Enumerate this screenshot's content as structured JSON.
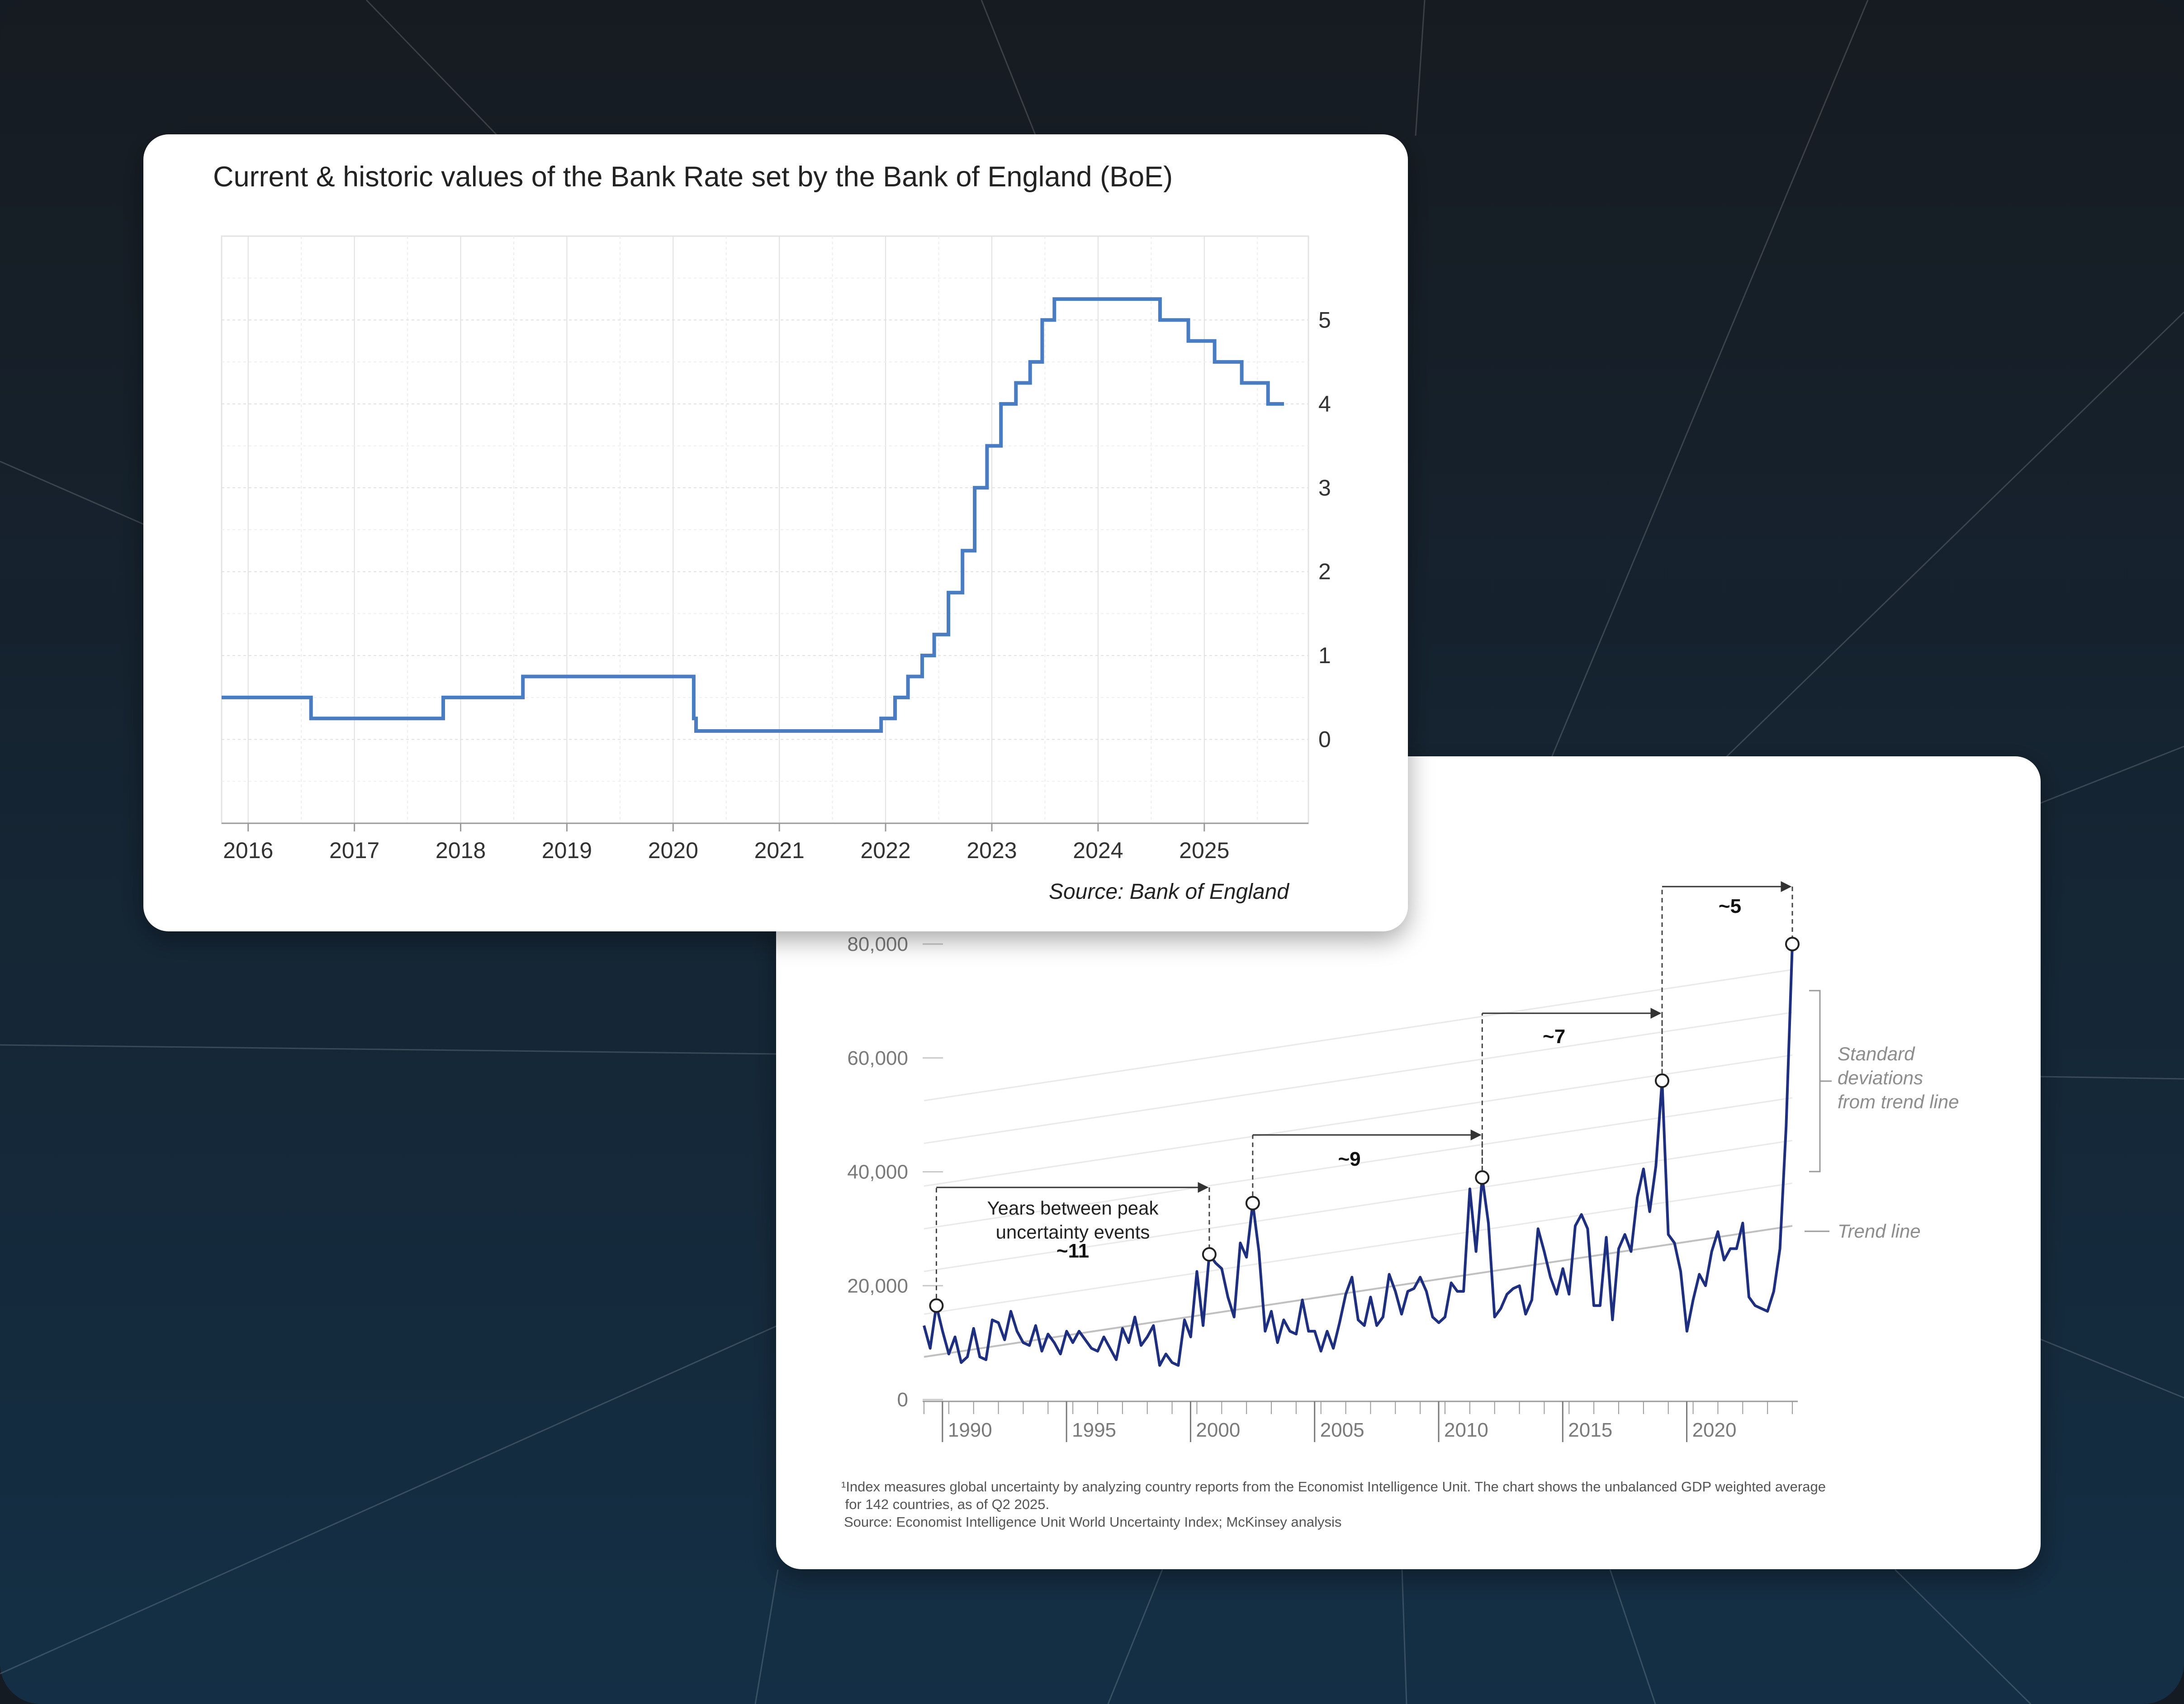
{
  "colors": {
    "background_top": "#161b21",
    "background_bottom": "#142f45",
    "card": "#ffffff",
    "boe_line": "#4a7cc2",
    "wui_line": "#1e2f80",
    "grid": "#e6e6e6",
    "muted_text": "#8d8d8d"
  },
  "boe_card": {
    "title": "Current & historic values of the Bank Rate set by the Bank of England (BoE)",
    "source": "Source: Bank of England"
  },
  "wui_card": {
    "annotations": {
      "years_between_peaks": [
        "Years between peak",
        "uncertainty events"
      ],
      "gap_11": "~11",
      "gap_9": "~9",
      "gap_7": "~7",
      "gap_5": "~5",
      "standard_deviations": [
        "Standard",
        "deviations",
        "from trend line"
      ],
      "trend_line": "Trend line"
    },
    "footnote": [
      "¹Index measures global uncertainty by analyzing country reports from the Economist Intelligence Unit. The chart shows the unbalanced GDP weighted average",
      " for 142 countries, as of Q2 2025.",
      "Source: Economist Intelligence Unit World Uncertainty Index; McKinsey analysis"
    ]
  },
  "chart_data": [
    {
      "type": "line",
      "title": "Current & historic values of the Bank Rate set by the Bank of England (BoE)",
      "xlabel": "",
      "ylabel": "",
      "interpolation": "step",
      "xlim": [
        2015.75,
        2025.98
      ],
      "ylim": [
        -1,
        6
      ],
      "x_ticks": [
        2016,
        2017,
        2018,
        2019,
        2020,
        2021,
        2022,
        2023,
        2024,
        2025
      ],
      "y_ticks": [
        0,
        1,
        2,
        3,
        4,
        5
      ],
      "y_axis_side": "right",
      "grid": true,
      "series": [
        {
          "points": [
            [
              "2015-10-01",
              0.5
            ],
            [
              "2016-08-04",
              0.25
            ],
            [
              "2017-11-02",
              0.5
            ],
            [
              "2018-08-02",
              0.75
            ],
            [
              "2020-03-11",
              0.25
            ],
            [
              "2020-03-19",
              0.1
            ],
            [
              "2021-12-16",
              0.25
            ],
            [
              "2022-02-03",
              0.5
            ],
            [
              "2022-03-17",
              0.75
            ],
            [
              "2022-05-05",
              1.0
            ],
            [
              "2022-06-16",
              1.25
            ],
            [
              "2022-08-04",
              1.75
            ],
            [
              "2022-09-22",
              2.25
            ],
            [
              "2022-11-03",
              3.0
            ],
            [
              "2022-12-15",
              3.5
            ],
            [
              "2023-02-02",
              4.0
            ],
            [
              "2023-03-23",
              4.25
            ],
            [
              "2023-05-11",
              4.5
            ],
            [
              "2023-06-22",
              5.0
            ],
            [
              "2023-08-03",
              5.25
            ],
            [
              "2024-08-01",
              5.0
            ],
            [
              "2024-11-07",
              4.75
            ],
            [
              "2025-02-06",
              4.5
            ],
            [
              "2025-05-08",
              4.25
            ],
            [
              "2025-08-07",
              4.0
            ],
            [
              "2025-10-01",
              4.0
            ]
          ]
        }
      ],
      "source": "Source: Bank of England"
    },
    {
      "type": "line",
      "title": "",
      "xlabel": "",
      "ylabel": "",
      "xlim": [
        1989,
        2025
      ],
      "ylim": [
        0,
        80000
      ],
      "x_ticks": [
        1990,
        1995,
        2000,
        2005,
        2010,
        2015,
        2020
      ],
      "y_ticks": [
        0,
        20000,
        40000,
        60000,
        80000
      ],
      "y_tick_labels": [
        "0",
        "20,000",
        "40,000",
        "60,000",
        "80,000"
      ],
      "grid": false,
      "series": [
        {
          "name": "",
          "points": [
            [
              1989.0,
              13000
            ],
            [
              1989.25,
              9000
            ],
            [
              1989.5,
              16500
            ],
            [
              1989.75,
              12000
            ],
            [
              1990.0,
              8000
            ],
            [
              1990.25,
              11000
            ],
            [
              1990.5,
              6500
            ],
            [
              1990.75,
              7500
            ],
            [
              1991.0,
              12500
            ],
            [
              1991.25,
              7500
            ],
            [
              1991.5,
              7000
            ],
            [
              1991.75,
              14000
            ],
            [
              1992.0,
              13500
            ],
            [
              1992.25,
              10500
            ],
            [
              1992.5,
              15500
            ],
            [
              1992.75,
              12000
            ],
            [
              1993.0,
              10000
            ],
            [
              1993.25,
              9500
            ],
            [
              1993.5,
              13000
            ],
            [
              1993.75,
              8500
            ],
            [
              1994.0,
              11500
            ],
            [
              1994.25,
              10000
            ],
            [
              1994.5,
              8000
            ],
            [
              1994.75,
              12000
            ],
            [
              1995.0,
              10000
            ],
            [
              1995.25,
              12000
            ],
            [
              1995.5,
              10500
            ],
            [
              1995.75,
              9000
            ],
            [
              1996.0,
              8500
            ],
            [
              1996.25,
              11000
            ],
            [
              1996.5,
              9000
            ],
            [
              1996.75,
              7000
            ],
            [
              1997.0,
              12500
            ],
            [
              1997.25,
              10000
            ],
            [
              1997.5,
              14500
            ],
            [
              1997.75,
              9500
            ],
            [
              1998.0,
              11000
            ],
            [
              1998.25,
              13000
            ],
            [
              1998.5,
              6000
            ],
            [
              1998.75,
              8000
            ],
            [
              1999.0,
              6500
            ],
            [
              1999.25,
              6000
            ],
            [
              1999.5,
              14000
            ],
            [
              1999.75,
              11000
            ],
            [
              2000.0,
              22500
            ],
            [
              2000.25,
              13000
            ],
            [
              2000.5,
              25500
            ],
            [
              2000.75,
              24000
            ],
            [
              2001.0,
              23000
            ],
            [
              2001.25,
              18000
            ],
            [
              2001.5,
              14500
            ],
            [
              2001.75,
              27500
            ],
            [
              2002.0,
              25000
            ],
            [
              2002.25,
              34500
            ],
            [
              2002.5,
              26000
            ],
            [
              2002.75,
              12000
            ],
            [
              2003.0,
              15500
            ],
            [
              2003.25,
              10000
            ],
            [
              2003.5,
              14000
            ],
            [
              2003.75,
              12000
            ],
            [
              2004.0,
              11500
            ],
            [
              2004.25,
              17500
            ],
            [
              2004.5,
              12000
            ],
            [
              2004.75,
              12000
            ],
            [
              2005.0,
              8500
            ],
            [
              2005.25,
              12000
            ],
            [
              2005.5,
              9000
            ],
            [
              2005.75,
              13500
            ],
            [
              2006.0,
              18500
            ],
            [
              2006.25,
              21500
            ],
            [
              2006.5,
              14000
            ],
            [
              2006.75,
              13000
            ],
            [
              2007.0,
              18000
            ],
            [
              2007.25,
              13000
            ],
            [
              2007.5,
              14500
            ],
            [
              2007.75,
              22000
            ],
            [
              2008.0,
              19000
            ],
            [
              2008.25,
              15000
            ],
            [
              2008.5,
              19000
            ],
            [
              2008.75,
              19500
            ],
            [
              2009.0,
              21500
            ],
            [
              2009.25,
              19000
            ],
            [
              2009.5,
              14500
            ],
            [
              2009.75,
              13500
            ],
            [
              2010.0,
              14500
            ],
            [
              2010.25,
              20500
            ],
            [
              2010.5,
              19000
            ],
            [
              2010.75,
              19000
            ],
            [
              2011.0,
              37000
            ],
            [
              2011.25,
              26000
            ],
            [
              2011.5,
              39000
            ],
            [
              2011.75,
              31000
            ],
            [
              2012.0,
              14500
            ],
            [
              2012.25,
              16000
            ],
            [
              2012.5,
              18500
            ],
            [
              2012.75,
              19500
            ],
            [
              2013.0,
              20000
            ],
            [
              2013.25,
              15000
            ],
            [
              2013.5,
              17500
            ],
            [
              2013.75,
              30000
            ],
            [
              2014.0,
              26000
            ],
            [
              2014.25,
              21500
            ],
            [
              2014.5,
              18500
            ],
            [
              2014.75,
              23000
            ],
            [
              2015.0,
              18500
            ],
            [
              2015.25,
              30500
            ],
            [
              2015.5,
              32500
            ],
            [
              2015.75,
              30000
            ],
            [
              2016.0,
              16500
            ],
            [
              2016.25,
              16500
            ],
            [
              2016.5,
              28500
            ],
            [
              2016.75,
              14000
            ],
            [
              2017.0,
              26500
            ],
            [
              2017.25,
              29000
            ],
            [
              2017.5,
              26000
            ],
            [
              2017.75,
              35500
            ],
            [
              2018.0,
              40500
            ],
            [
              2018.25,
              33000
            ],
            [
              2018.5,
              41000
            ],
            [
              2018.75,
              56000
            ],
            [
              2019.0,
              29000
            ],
            [
              2019.25,
              27500
            ],
            [
              2019.5,
              22500
            ],
            [
              2019.75,
              12000
            ],
            [
              2020.0,
              17500
            ],
            [
              2020.25,
              22000
            ],
            [
              2020.5,
              20000
            ],
            [
              2020.75,
              26000
            ],
            [
              2021.0,
              29500
            ],
            [
              2021.25,
              24500
            ],
            [
              2021.5,
              26500
            ],
            [
              2021.75,
              26500
            ],
            [
              2022.0,
              31000
            ],
            [
              2022.25,
              18000
            ],
            [
              2022.5,
              16500
            ],
            [
              2022.75,
              16000
            ],
            [
              2023.0,
              15500
            ],
            [
              2023.25,
              19000
            ],
            [
              2023.5,
              26500
            ],
            [
              2023.75,
              48000
            ],
            [
              2024.0,
              80000
            ]
          ]
        },
        {
          "name": "Trend line",
          "points": [
            [
              1989,
              7500
            ],
            [
              2024,
              30500
            ]
          ]
        }
      ],
      "standard_deviation_bands": [
        {
          "x1": 1989,
          "y1": 15000,
          "x2": 2024,
          "y2": 38000
        },
        {
          "x1": 1989,
          "y1": 22500,
          "x2": 2024,
          "y2": 45500
        },
        {
          "x1": 1989,
          "y1": 30000,
          "x2": 2024,
          "y2": 53000
        },
        {
          "x1": 1989,
          "y1": 37500,
          "x2": 2024,
          "y2": 60500
        },
        {
          "x1": 1989,
          "y1": 45000,
          "x2": 2024,
          "y2": 68000
        },
        {
          "x1": 1989,
          "y1": 52500,
          "x2": 2024,
          "y2": 75500
        }
      ],
      "peaks": [
        {
          "x": 1989.5,
          "y": 16500
        },
        {
          "x": 2000.5,
          "y": 25500
        },
        {
          "x": 2002.25,
          "y": 34500
        },
        {
          "x": 2011.5,
          "y": 39000
        },
        {
          "x": 2018.75,
          "y": 56000
        },
        {
          "x": 2024.0,
          "y": 80000
        }
      ],
      "peak_gaps": [
        {
          "from": 1989.5,
          "to": 2000.5,
          "label": "~11"
        },
        {
          "from": 2002.25,
          "to": 2011.5,
          "label": "~9"
        },
        {
          "from": 2011.5,
          "to": 2018.75,
          "label": "~7"
        },
        {
          "from": 2018.75,
          "to": 2024.0,
          "label": "~5"
        }
      ]
    }
  ]
}
